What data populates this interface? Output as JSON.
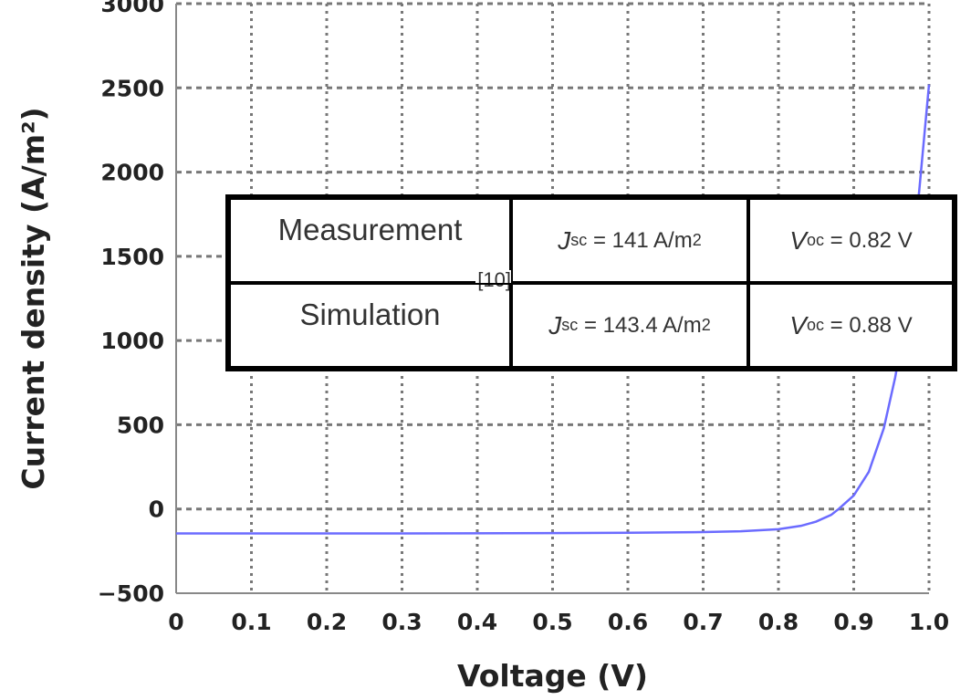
{
  "chart_data": {
    "type": "line",
    "title": "",
    "xlabel": "Voltage (V)",
    "ylabel": "Current density (A/m²)",
    "xlim": [
      0,
      1.0
    ],
    "ylim": [
      -500,
      3000
    ],
    "xticks": [
      "0",
      "0.1",
      "0.2",
      "0.3",
      "0.4",
      "0.5",
      "0.6",
      "0.7",
      "0.8",
      "0.9",
      "1.0"
    ],
    "yticks": [
      "3000",
      "2500",
      "2000",
      "1500",
      "1000",
      "500",
      "0",
      "−500"
    ],
    "grid": true,
    "series": [
      {
        "color": "#6b6bff",
        "x": [
          0,
          0.3,
          0.5,
          0.6,
          0.7,
          0.75,
          0.8,
          0.83,
          0.85,
          0.87,
          0.88,
          0.9,
          0.92,
          0.94,
          0.955,
          0.97,
          0.987,
          1.0
        ],
        "y": [
          -145,
          -145,
          -143,
          -141,
          -137,
          -132,
          -120,
          -100,
          -75,
          -35,
          0,
          80,
          220,
          480,
          780,
          1150,
          1890,
          2520
        ]
      }
    ],
    "table": {
      "rows": [
        {
          "label": "Measurement",
          "ref": "[10]",
          "jsc_sym": "J",
          "jsc_sub": "sc",
          "jsc_val": "= 141 A/m",
          "jsc_sup": "2",
          "voc_sym": "V",
          "voc_sub": "oc",
          "voc_val": " = 0.82 V"
        },
        {
          "label": "Simulation",
          "jsc_sym": "J",
          "jsc_sub": "sc",
          "jsc_val": "= 143.4 A/m",
          "jsc_sup": "2",
          "voc_sym": "V",
          "voc_sub": "oc",
          "voc_val": " = 0.88 V"
        }
      ]
    }
  }
}
